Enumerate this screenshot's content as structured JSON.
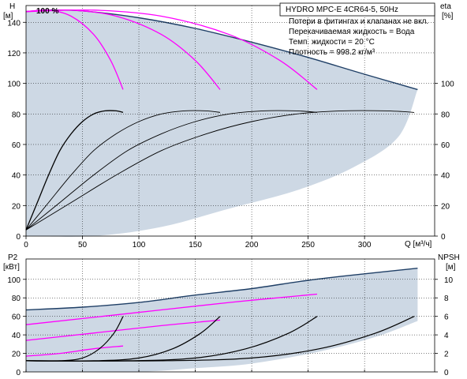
{
  "title": "HYDRO MPC-E 4CR64-5, 50Hz",
  "notes": [
    "Потери в фитингах и клапанах не вкл.",
    "Перекачиваемая жидкость = Вода",
    "Темп. жидкости = 20 °C",
    "Плотность = 998.2 кг/м³"
  ],
  "speed_label": "100 %",
  "colors": {
    "envelope_fill": "#cdd8e4",
    "envelope_edge": "#1f3f66",
    "pump_curve": "#ff00ff",
    "efficiency": "#000000",
    "grid": "#000000"
  },
  "chart_data": [
    {
      "type": "line",
      "name": "upper",
      "x_label": "Q [м³/ч]",
      "xlim": [
        0,
        350
      ],
      "x_ticks": [
        0,
        50,
        100,
        150,
        200,
        250,
        300
      ],
      "left_axis": {
        "label": "H",
        "unit": "[м]",
        "ylim": [
          0,
          150
        ],
        "ticks": [
          0,
          20,
          40,
          60,
          80,
          100,
          120,
          140
        ]
      },
      "right_axis": {
        "label": "eta",
        "unit": "[%]",
        "ylim": [
          0,
          150
        ],
        "ticks": [
          0,
          20,
          40,
          60,
          80,
          100
        ]
      },
      "envelope": {
        "name": "max-range",
        "top": [
          [
            0,
            147
          ],
          [
            20,
            148
          ],
          [
            50,
            147.5
          ],
          [
            100,
            143
          ],
          [
            150,
            136
          ],
          [
            200,
            127
          ],
          [
            250,
            117
          ],
          [
            300,
            106
          ],
          [
            347,
            96
          ]
        ],
        "bottom": [
          [
            0,
            0
          ],
          [
            60,
            0
          ],
          [
            120,
            6
          ],
          [
            180,
            18
          ],
          [
            240,
            30
          ],
          [
            290,
            45
          ],
          [
            330,
            65
          ],
          [
            347,
            96
          ]
        ]
      },
      "head_curves": [
        {
          "name": "1 pump",
          "points": [
            [
              0,
              147
            ],
            [
              20,
              148
            ],
            [
              40,
              144
            ],
            [
              60,
              132
            ],
            [
              75,
              115
            ],
            [
              86,
              96
            ]
          ]
        },
        {
          "name": "2 pumps",
          "points": [
            [
              0,
              147
            ],
            [
              40,
              148
            ],
            [
              80,
              144
            ],
            [
              120,
              132
            ],
            [
              150,
              115
            ],
            [
              172,
              96
            ]
          ]
        },
        {
          "name": "3 pumps",
          "points": [
            [
              0,
              147
            ],
            [
              60,
              148
            ],
            [
              120,
              144
            ],
            [
              180,
              132
            ],
            [
              225,
              115
            ],
            [
              258,
              96
            ]
          ]
        }
      ],
      "efficiency_curves": [
        {
          "name": "1 pump",
          "points": [
            [
              0,
              4
            ],
            [
              10,
              22
            ],
            [
              20,
              40
            ],
            [
              30,
              56
            ],
            [
              40,
              67
            ],
            [
              50,
              75
            ],
            [
              60,
              80
            ],
            [
              70,
              82
            ],
            [
              80,
              82
            ],
            [
              86,
              81
            ]
          ]
        },
        {
          "name": "2 pumps",
          "points": [
            [
              0,
              4
            ],
            [
              20,
              22
            ],
            [
              40,
              40
            ],
            [
              60,
              56
            ],
            [
              80,
              67
            ],
            [
              100,
              75
            ],
            [
              120,
              80
            ],
            [
              140,
              82
            ],
            [
              160,
              82
            ],
            [
              172,
              81
            ]
          ]
        },
        {
          "name": "3 pumps",
          "points": [
            [
              0,
              4
            ],
            [
              30,
              22
            ],
            [
              60,
              40
            ],
            [
              90,
              56
            ],
            [
              120,
              67
            ],
            [
              150,
              75
            ],
            [
              180,
              80
            ],
            [
              210,
              82
            ],
            [
              240,
              82
            ],
            [
              258,
              81
            ]
          ]
        },
        {
          "name": "4 pumps",
          "points": [
            [
              0,
              4
            ],
            [
              40,
              22
            ],
            [
              80,
              40
            ],
            [
              120,
              56
            ],
            [
              160,
              67
            ],
            [
              200,
              75
            ],
            [
              240,
              80
            ],
            [
              280,
              82
            ],
            [
              320,
              82
            ],
            [
              344,
              81
            ]
          ]
        }
      ]
    },
    {
      "type": "line",
      "name": "lower",
      "xlim": [
        0,
        350
      ],
      "left_axis": {
        "label": "P2",
        "unit": "[кВт]",
        "ylim": [
          0,
          120
        ],
        "ticks": [
          0,
          20,
          40,
          60,
          80,
          100
        ]
      },
      "right_axis": {
        "label": "NPSH",
        "unit": "[м]",
        "ylim": [
          0,
          12
        ],
        "ticks": [
          0,
          2,
          4,
          6,
          8,
          10
        ]
      },
      "envelope": {
        "name": "power-range",
        "top": [
          [
            0,
            67
          ],
          [
            50,
            70
          ],
          [
            100,
            75
          ],
          [
            150,
            83
          ],
          [
            200,
            90
          ],
          [
            250,
            99
          ],
          [
            300,
            106
          ],
          [
            347,
            112
          ]
        ],
        "bottom": [
          [
            0,
            0
          ],
          [
            40,
            0
          ],
          [
            100,
            0
          ],
          [
            150,
            4
          ],
          [
            200,
            9
          ],
          [
            260,
            22
          ],
          [
            310,
            38
          ],
          [
            347,
            55
          ]
        ]
      },
      "power_curves": [
        {
          "name": "1 pump",
          "points": [
            [
              0,
              17
            ],
            [
              30,
              20
            ],
            [
              60,
              25
            ],
            [
              86,
              28
            ]
          ]
        },
        {
          "name": "2 pumps",
          "points": [
            [
              0,
              34
            ],
            [
              60,
              42
            ],
            [
              120,
              50
            ],
            [
              172,
              56
            ]
          ]
        },
        {
          "name": "3 pumps",
          "points": [
            [
              0,
              51
            ],
            [
              90,
              63
            ],
            [
              180,
              75
            ],
            [
              258,
              84
            ]
          ]
        }
      ],
      "npsh_curves": [
        {
          "name": "1 pump",
          "points": [
            [
              0,
              1.2
            ],
            [
              30,
              1.2
            ],
            [
              50,
              1.5
            ],
            [
              65,
              2.5
            ],
            [
              78,
              4.2
            ],
            [
              86,
              6
            ]
          ]
        },
        {
          "name": "2 pumps",
          "points": [
            [
              0,
              1.2
            ],
            [
              60,
              1.2
            ],
            [
              100,
              1.5
            ],
            [
              130,
              2.5
            ],
            [
              155,
              4.2
            ],
            [
              172,
              6
            ]
          ]
        },
        {
          "name": "3 pumps",
          "points": [
            [
              0,
              1.2
            ],
            [
              90,
              1.2
            ],
            [
              150,
              1.5
            ],
            [
              195,
              2.5
            ],
            [
              233,
              4.2
            ],
            [
              258,
              6
            ]
          ]
        },
        {
          "name": "4 pumps",
          "points": [
            [
              0,
              1.2
            ],
            [
              120,
              1.2
            ],
            [
              200,
              1.5
            ],
            [
              260,
              2.5
            ],
            [
              310,
              4.2
            ],
            [
              344,
              6
            ]
          ]
        }
      ]
    }
  ]
}
